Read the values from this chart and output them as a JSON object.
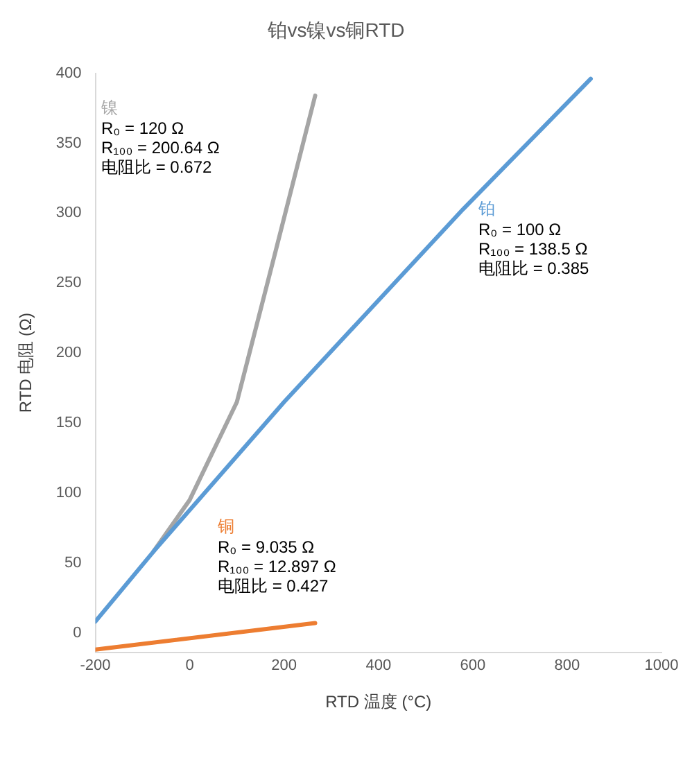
{
  "chart_data": {
    "type": "line",
    "title": "铂vs镍vs铜RTD",
    "xlabel": "RTD 温度 (°C)",
    "ylabel": "RTD 电阻 (Ω)",
    "xlim": [
      -200,
      1000
    ],
    "xticks": [
      -200,
      0,
      200,
      400,
      600,
      800,
      1000
    ],
    "ylim": [
      -14,
      400
    ],
    "yticks": [
      0,
      50,
      100,
      150,
      200,
      250,
      300,
      350,
      400
    ],
    "grid": false,
    "legend": false,
    "marker": "none",
    "line_style": "solid",
    "series": [
      {
        "name": "铂",
        "color": "#5b9bd5",
        "x": [
          -200,
          -77,
          200,
          580,
          850
        ],
        "values": [
          8,
          58,
          165,
          303,
          396
        ]
      },
      {
        "name": "镍",
        "color": "#a5a5a5",
        "x": [
          -77,
          0,
          100,
          180,
          266
        ],
        "values": [
          58,
          95,
          165,
          270,
          384
        ]
      },
      {
        "name": "铜",
        "color": "#ed7d31",
        "x": [
          -200,
          266
        ],
        "values": [
          -12,
          7
        ]
      }
    ],
    "annotations": [
      "R₀ = 100 Ω\nR₁₀₀ = 138.5 Ω\n电阻比 = 0.385",
      "R₀ = 120 Ω\nR₁₀₀ = 200.64 Ω\n电阻比 = 0.672",
      "R₀ = 9.035 Ω\nR₁₀₀ = 12.897 Ω\n电阻比 = 0.427"
    ]
  }
}
